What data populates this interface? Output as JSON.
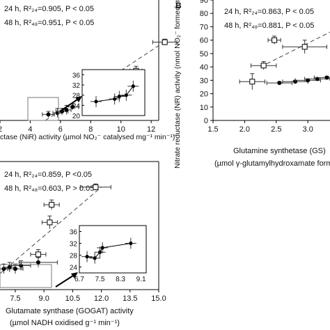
{
  "chart_data": [
    {
      "type": "scatter",
      "panel": "top-left",
      "xlabel": "ctase (NiR) activity (µmol NO₂⁻ catalysed mg⁻¹ min⁻¹)",
      "xticks": [
        "2",
        "4",
        "6",
        "8",
        "10",
        "12"
      ],
      "xlim": [
        2,
        12.5
      ],
      "ylim": [
        20,
        100
      ],
      "legend": [
        {
          "marker": "open",
          "text": "24 h, R²₂₄=0.905, P < 0.05"
        },
        {
          "marker": "filled",
          "text": "48 h, R²₄₈=0.951, P < 0.05"
        }
      ],
      "series": [
        {
          "marker": "open",
          "x": [
            9.3,
            10.5,
            11.0,
            12.9
          ],
          "y": [
            31,
            44,
            53,
            72
          ],
          "xerr": [
            0.6,
            0.4,
            0.4,
            0.8
          ],
          "yerr": [
            3,
            3,
            3,
            2
          ]
        },
        {
          "marker": "filled",
          "x": [
            5.2,
            5.8,
            6.1,
            6.4,
            6.8
          ],
          "y": [
            24,
            25,
            26,
            27,
            29
          ],
          "xerr": [
            0.4,
            0.3,
            0.4,
            0.3,
            0.4
          ],
          "yerr": [
            2,
            3,
            2,
            3,
            2
          ]
        }
      ],
      "trendline": {
        "style": "dashed",
        "x": [
          5.0,
          13.0
        ],
        "y": [
          20,
          73
        ]
      },
      "inset": {
        "yticks": [
          "36",
          "32",
          "28",
          "24",
          "20"
        ],
        "points": [
          {
            "x": 5.1,
            "y": 25.5
          },
          {
            "x": 5.9,
            "y": 26.5
          },
          {
            "x": 6.1,
            "y": 27.5
          },
          {
            "x": 6.4,
            "y": 28.0
          },
          {
            "x": 6.7,
            "y": 31.5
          }
        ]
      }
    },
    {
      "type": "scatter",
      "panel": "B",
      "panel_label": "B",
      "ylabel": "Nitrate reductase (NR) activity (nmol NO₂⁻ formed mg⁻¹ min⁻¹)",
      "xlabel": "Glutamine synthetase (GS)",
      "xlabel2": "(µmol γ-glutamylhydroxamate form",
      "xticks": [
        "1.5",
        "2.0",
        "2.5",
        "3.0"
      ],
      "yticks": [
        "0",
        "10",
        "20",
        "30",
        "40",
        "50",
        "60",
        "70",
        "80",
        "90"
      ],
      "xlim": [
        1.5,
        3.35
      ],
      "ylim": [
        0,
        90
      ],
      "legend": [
        {
          "marker": "open",
          "text": "24 h, R²₂₄=0.863, P < 0.05"
        },
        {
          "marker": "filled",
          "text": "48 h, R²₄₈=0.881, P < 0.05"
        }
      ],
      "series": [
        {
          "marker": "open",
          "x": [
            2.12,
            2.3,
            2.47,
            2.95
          ],
          "y": [
            29,
            41,
            60,
            55
          ],
          "xerr": [
            0.2,
            0.2,
            0.1,
            0.35
          ],
          "yerr": [
            6,
            3,
            3,
            5
          ]
        },
        {
          "marker": "filled",
          "x": [
            2.55,
            2.8,
            3.0,
            3.15,
            3.3
          ],
          "y": [
            28,
            29,
            30,
            31,
            32
          ],
          "xerr": [
            0.2,
            0.2,
            0.2,
            0.2,
            0.2
          ],
          "yerr": [
            1,
            1,
            1,
            1,
            1
          ]
        }
      ],
      "trendline": {
        "style": "dashed",
        "x": [
          2.25,
          3.35
        ],
        "y": [
          40,
          66
        ]
      }
    },
    {
      "type": "scatter",
      "panel": "bottom-left",
      "xlabel": "Glutamate synthase (GOGAT) activity",
      "xlabel2": "(µmol NADH oxidised g⁻¹ min⁻¹)",
      "xticks": [
        "7.5",
        "9.0",
        "10.5",
        "12.0",
        "13.5",
        "15.0"
      ],
      "xlim": [
        6.7,
        15
      ],
      "ylim": [
        20,
        100
      ],
      "legend": [
        {
          "marker": "open",
          "text": "24 h, R²₂₄=0.859, P <0.05"
        },
        {
          "marker": "filled",
          "text": "48 h, R²₄₈=0.603, P > 0.05"
        }
      ],
      "series": [
        {
          "marker": "open",
          "x": [
            8.7,
            9.3,
            9.4,
            11.7
          ],
          "y": [
            42,
            62,
            73,
            84
          ],
          "xerr": [
            0.4,
            0.4,
            0.4,
            0.8
          ],
          "yerr": [
            3,
            4,
            3,
            2
          ]
        },
        {
          "marker": "filled",
          "x": [
            6.9,
            7.2,
            7.5,
            7.8,
            8.7
          ],
          "y": [
            33,
            34,
            33,
            35,
            37
          ],
          "xerr": [
            0.3,
            0.3,
            0.4,
            0.5,
            1.0
          ],
          "yerr": [
            3,
            3,
            3,
            3,
            3
          ]
        }
      ],
      "trendline": {
        "style": "dashed",
        "x": [
          6.7,
          12.0
        ],
        "y": [
          30,
          84
        ]
      },
      "inset": {
        "xticks": [
          "6.7",
          "7.5",
          "8.3",
          "9.1"
        ],
        "yticks": [
          "36",
          "32",
          "28",
          "24"
        ],
        "points": [
          {
            "x": 7.0,
            "y": 27.5
          },
          {
            "x": 7.3,
            "y": 27.0
          },
          {
            "x": 7.5,
            "y": 29.0
          },
          {
            "x": 7.6,
            "y": 30.5
          },
          {
            "x": 8.7,
            "y": 32.0
          }
        ]
      }
    }
  ]
}
